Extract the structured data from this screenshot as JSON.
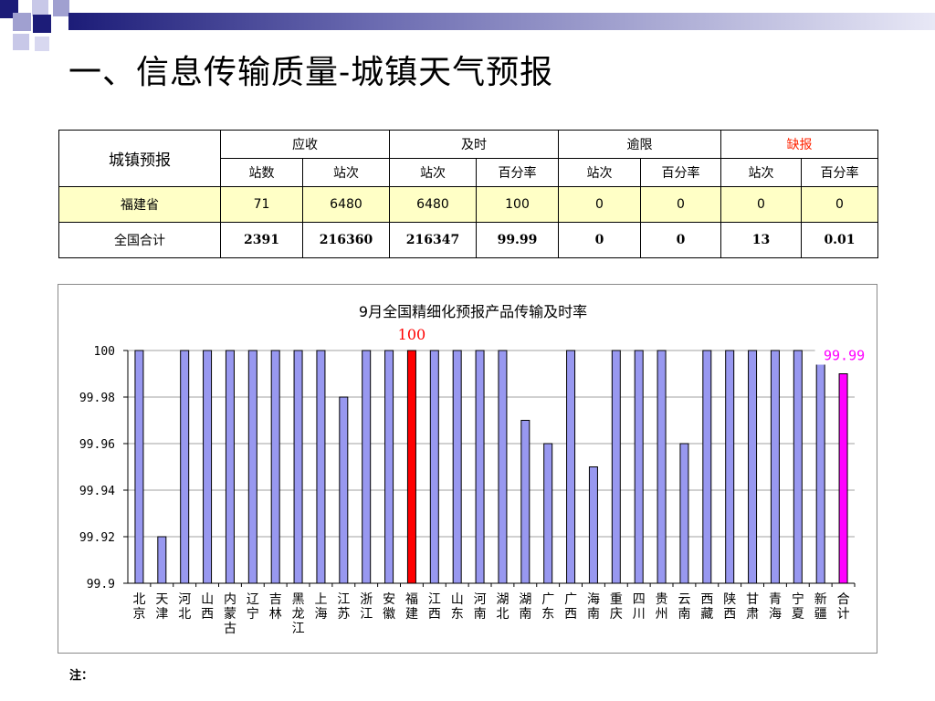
{
  "slide": {
    "title": "一、信息传输质量-城镇天气预报",
    "note": "注："
  },
  "table": {
    "corner": "城镇预报",
    "groups": [
      "应收",
      "及时",
      "逾限",
      "缺报"
    ],
    "subheaders": [
      "站数",
      "站次",
      "站次",
      "百分率",
      "站次",
      "百分率",
      "站次",
      "百分率"
    ],
    "rows": [
      {
        "name": "福建省",
        "cells": [
          "71",
          "6480",
          "6480",
          "100",
          "0",
          "0",
          "0",
          "0"
        ]
      },
      {
        "name": "全国合计",
        "cells": [
          "2391",
          "216360",
          "216347",
          "99.99",
          "0",
          "0",
          "13",
          "0.01"
        ]
      }
    ]
  },
  "colors": {
    "bar": "#9898f0",
    "highlight": "#ff0000",
    "total": "#ff00ff",
    "missing_header": "#ff2200",
    "row_highlight": "#ffffc6"
  },
  "chart_data": {
    "type": "bar",
    "title": "9月全国精细化预报产品传输及时率",
    "ylim": [
      99.9,
      100
    ],
    "yticks": [
      "100",
      "99.98",
      "99.96",
      "99.94",
      "99.92",
      "99.9"
    ],
    "grid": true,
    "categories": [
      "北京",
      "天津",
      "河北",
      "山西",
      "内蒙古",
      "辽宁",
      "吉林",
      "黑龙江",
      "上海",
      "江苏",
      "浙江",
      "安徽",
      "福建",
      "江西",
      "山东",
      "河南",
      "湖北",
      "湖南",
      "广东",
      "广西",
      "海南",
      "重庆",
      "四川",
      "贵州",
      "云南",
      "西藏",
      "陕西",
      "甘肃",
      "青海",
      "宁夏",
      "新疆",
      "合计"
    ],
    "values": [
      100,
      99.92,
      100,
      100,
      100,
      100,
      100,
      100,
      100,
      99.98,
      100,
      100,
      100,
      100,
      100,
      100,
      100,
      99.97,
      99.96,
      100,
      99.95,
      100,
      100,
      100,
      99.96,
      100,
      100,
      100,
      100,
      100,
      100,
      99.99
    ],
    "highlight_index": 12,
    "total_index": 31,
    "annotations": [
      {
        "category": "福建",
        "text": "100"
      },
      {
        "category": "合计",
        "text": "99.99"
      }
    ]
  }
}
